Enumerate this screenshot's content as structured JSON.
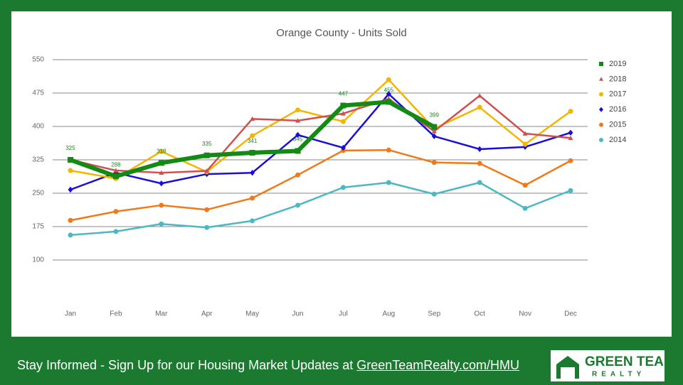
{
  "chart_data": {
    "type": "line",
    "title": "Orange County - Units Sold",
    "categories": [
      "Jan",
      "Feb",
      "Mar",
      "Apr",
      "May",
      "Jun",
      "Jul",
      "Aug",
      "Sep",
      "Oct",
      "Nov",
      "Dec"
    ],
    "ylim": [
      0,
      550
    ],
    "yticks": [
      100,
      175,
      250,
      325,
      400,
      475,
      550
    ],
    "grid": true,
    "legend": "right",
    "series": [
      {
        "name": "2019",
        "color": "#138a13",
        "marker": "square",
        "data_labels": true,
        "values": [
          325,
          288,
          318,
          335,
          341,
          345,
          447,
          455,
          399,
          null,
          null,
          null
        ]
      },
      {
        "name": "2018",
        "color": "#d0504f",
        "marker": "triangle",
        "values": [
          325,
          301,
          296,
          300,
          417,
          413,
          429,
          462,
          389,
          469,
          384,
          374
        ]
      },
      {
        "name": "2017",
        "color": "#f4b400",
        "marker": "circle",
        "values": [
          301,
          283,
          344,
          298,
          379,
          437,
          411,
          505,
          395,
          443,
          360,
          434
        ]
      },
      {
        "name": "2016",
        "color": "#1a0fd6",
        "marker": "diamond",
        "values": [
          258,
          296,
          272,
          293,
          296,
          381,
          352,
          473,
          378,
          349,
          354,
          386
        ]
      },
      {
        "name": "2015",
        "color": "#f07a1a",
        "marker": "circle",
        "values": [
          189,
          209,
          223,
          213,
          239,
          291,
          346,
          347,
          319,
          317,
          268,
          323
        ]
      },
      {
        "name": "2014",
        "color": "#4cb8c4",
        "marker": "circle",
        "values": [
          156,
          164,
          181,
          173,
          188,
          223,
          263,
          274,
          248,
          274,
          216,
          256
        ]
      }
    ]
  },
  "footer": {
    "text": "Stay Informed - Sign Up for our Housing Market Updates at",
    "link": "GreenTeamRealty.com/HMU"
  },
  "logo": {
    "line1": "GREEN TEAM",
    "line2": "REALTY"
  }
}
